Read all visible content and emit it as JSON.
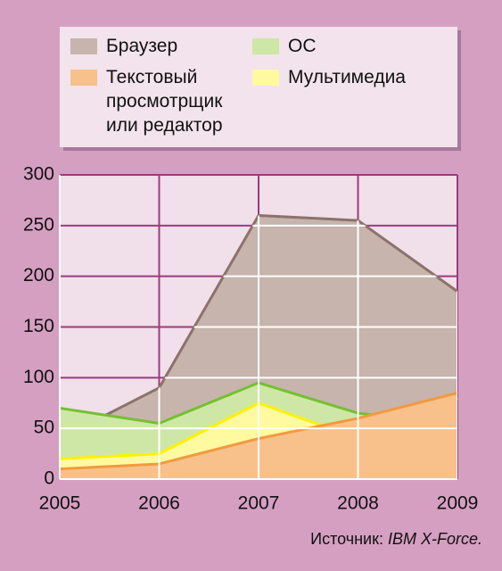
{
  "chart_data": {
    "type": "area",
    "x": [
      2005,
      2006,
      2007,
      2008,
      2009
    ],
    "xlim": [
      2005,
      2009
    ],
    "xticks": [
      2005,
      2006,
      2007,
      2008,
      2009
    ],
    "ylim": [
      0,
      300
    ],
    "yticks": [
      0,
      50,
      100,
      150,
      200,
      250,
      300
    ],
    "grid": true,
    "legend": "top",
    "series": [
      {
        "name": "Браузер",
        "color": "#c7b4ad",
        "line_color": "#8b736c",
        "values": [
          40,
          90,
          260,
          255,
          185
        ]
      },
      {
        "name": "ОС",
        "color": "#cfe7a6",
        "line_color": "#74c031",
        "values": [
          70,
          55,
          95,
          65,
          55
        ]
      },
      {
        "name": "Текстовый просмотрщик или редактор",
        "color": "#f8c08b",
        "line_color": "#f19a3e",
        "values": [
          10,
          15,
          40,
          60,
          85
        ]
      },
      {
        "name": "Мультимедиа",
        "color": "#fff9a0",
        "line_color": "#fff200",
        "values": [
          20,
          25,
          75,
          40,
          80
        ]
      }
    ],
    "source_label": "Источник:",
    "source_name": "IBM X-Force."
  }
}
